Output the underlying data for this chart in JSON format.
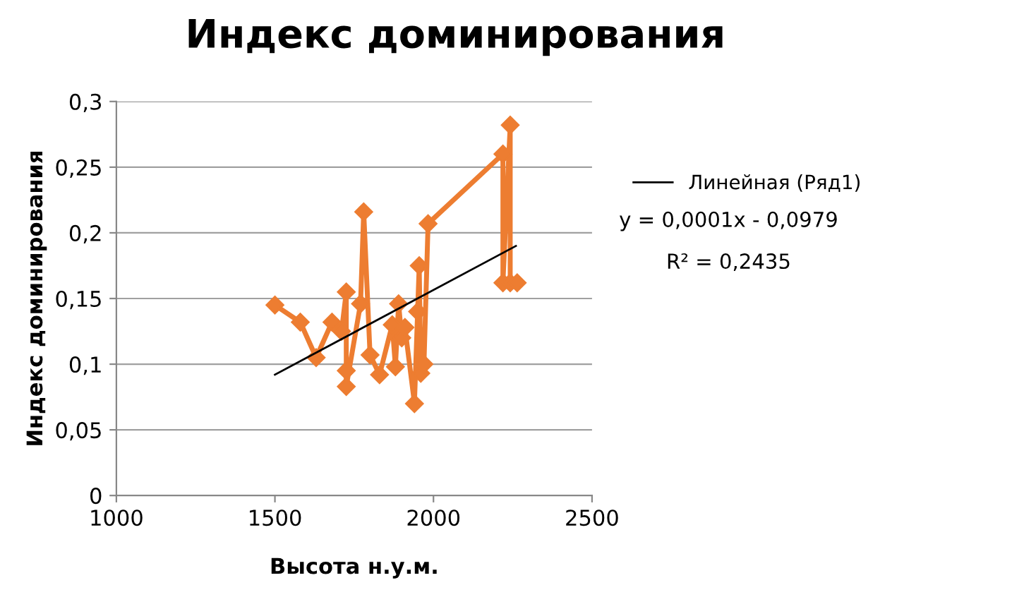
{
  "chart_data": {
    "type": "line",
    "title": "Индекс доминирования",
    "xlabel": "Высота н.у.м.",
    "ylabel": "Индекс доминирования",
    "xlim": [
      1000,
      2500
    ],
    "xticks": [
      1000,
      1500,
      2000,
      2500
    ],
    "ylim": [
      0,
      0.3
    ],
    "yticks": [
      {
        "value": 0,
        "label": "0"
      },
      {
        "value": 0.05,
        "label": "0,05"
      },
      {
        "value": 0.1,
        "label": "0,1"
      },
      {
        "value": 0.15,
        "label": "0,15"
      },
      {
        "value": 0.2,
        "label": "0,2"
      },
      {
        "value": 0.25,
        "label": "0,25"
      },
      {
        "value": 0.3,
        "label": "0,3"
      }
    ],
    "grid": "y",
    "legend": "right",
    "series": [
      {
        "color": "#ed7d31",
        "marker": "diamond",
        "x": [
          1500,
          1580,
          1630,
          1680,
          1710,
          1725,
          1725,
          1725,
          1770,
          1780,
          1800,
          1830,
          1870,
          1880,
          1890,
          1900,
          1910,
          1940,
          1950,
          1955,
          1960,
          1970,
          1983,
          2219,
          2219,
          2242,
          2242,
          2264
        ],
        "values": [
          0.145,
          0.132,
          0.105,
          0.132,
          0.125,
          0.155,
          0.095,
          0.083,
          0.146,
          0.216,
          0.107,
          0.092,
          0.13,
          0.098,
          0.146,
          0.12,
          0.128,
          0.07,
          0.14,
          0.175,
          0.093,
          0.1,
          0.207,
          0.26,
          0.162,
          0.282,
          0.162,
          0.162
        ]
      },
      {
        "type": "line",
        "name": "Линейная (Ряд1)",
        "color": "#000000",
        "marker": "none",
        "x": [
          1500,
          2260
        ],
        "values": [
          0.092,
          0.19
        ]
      }
    ],
    "annotations": [
      "y = 0,0001x - 0,0979",
      "R² = 0,2435"
    ]
  }
}
